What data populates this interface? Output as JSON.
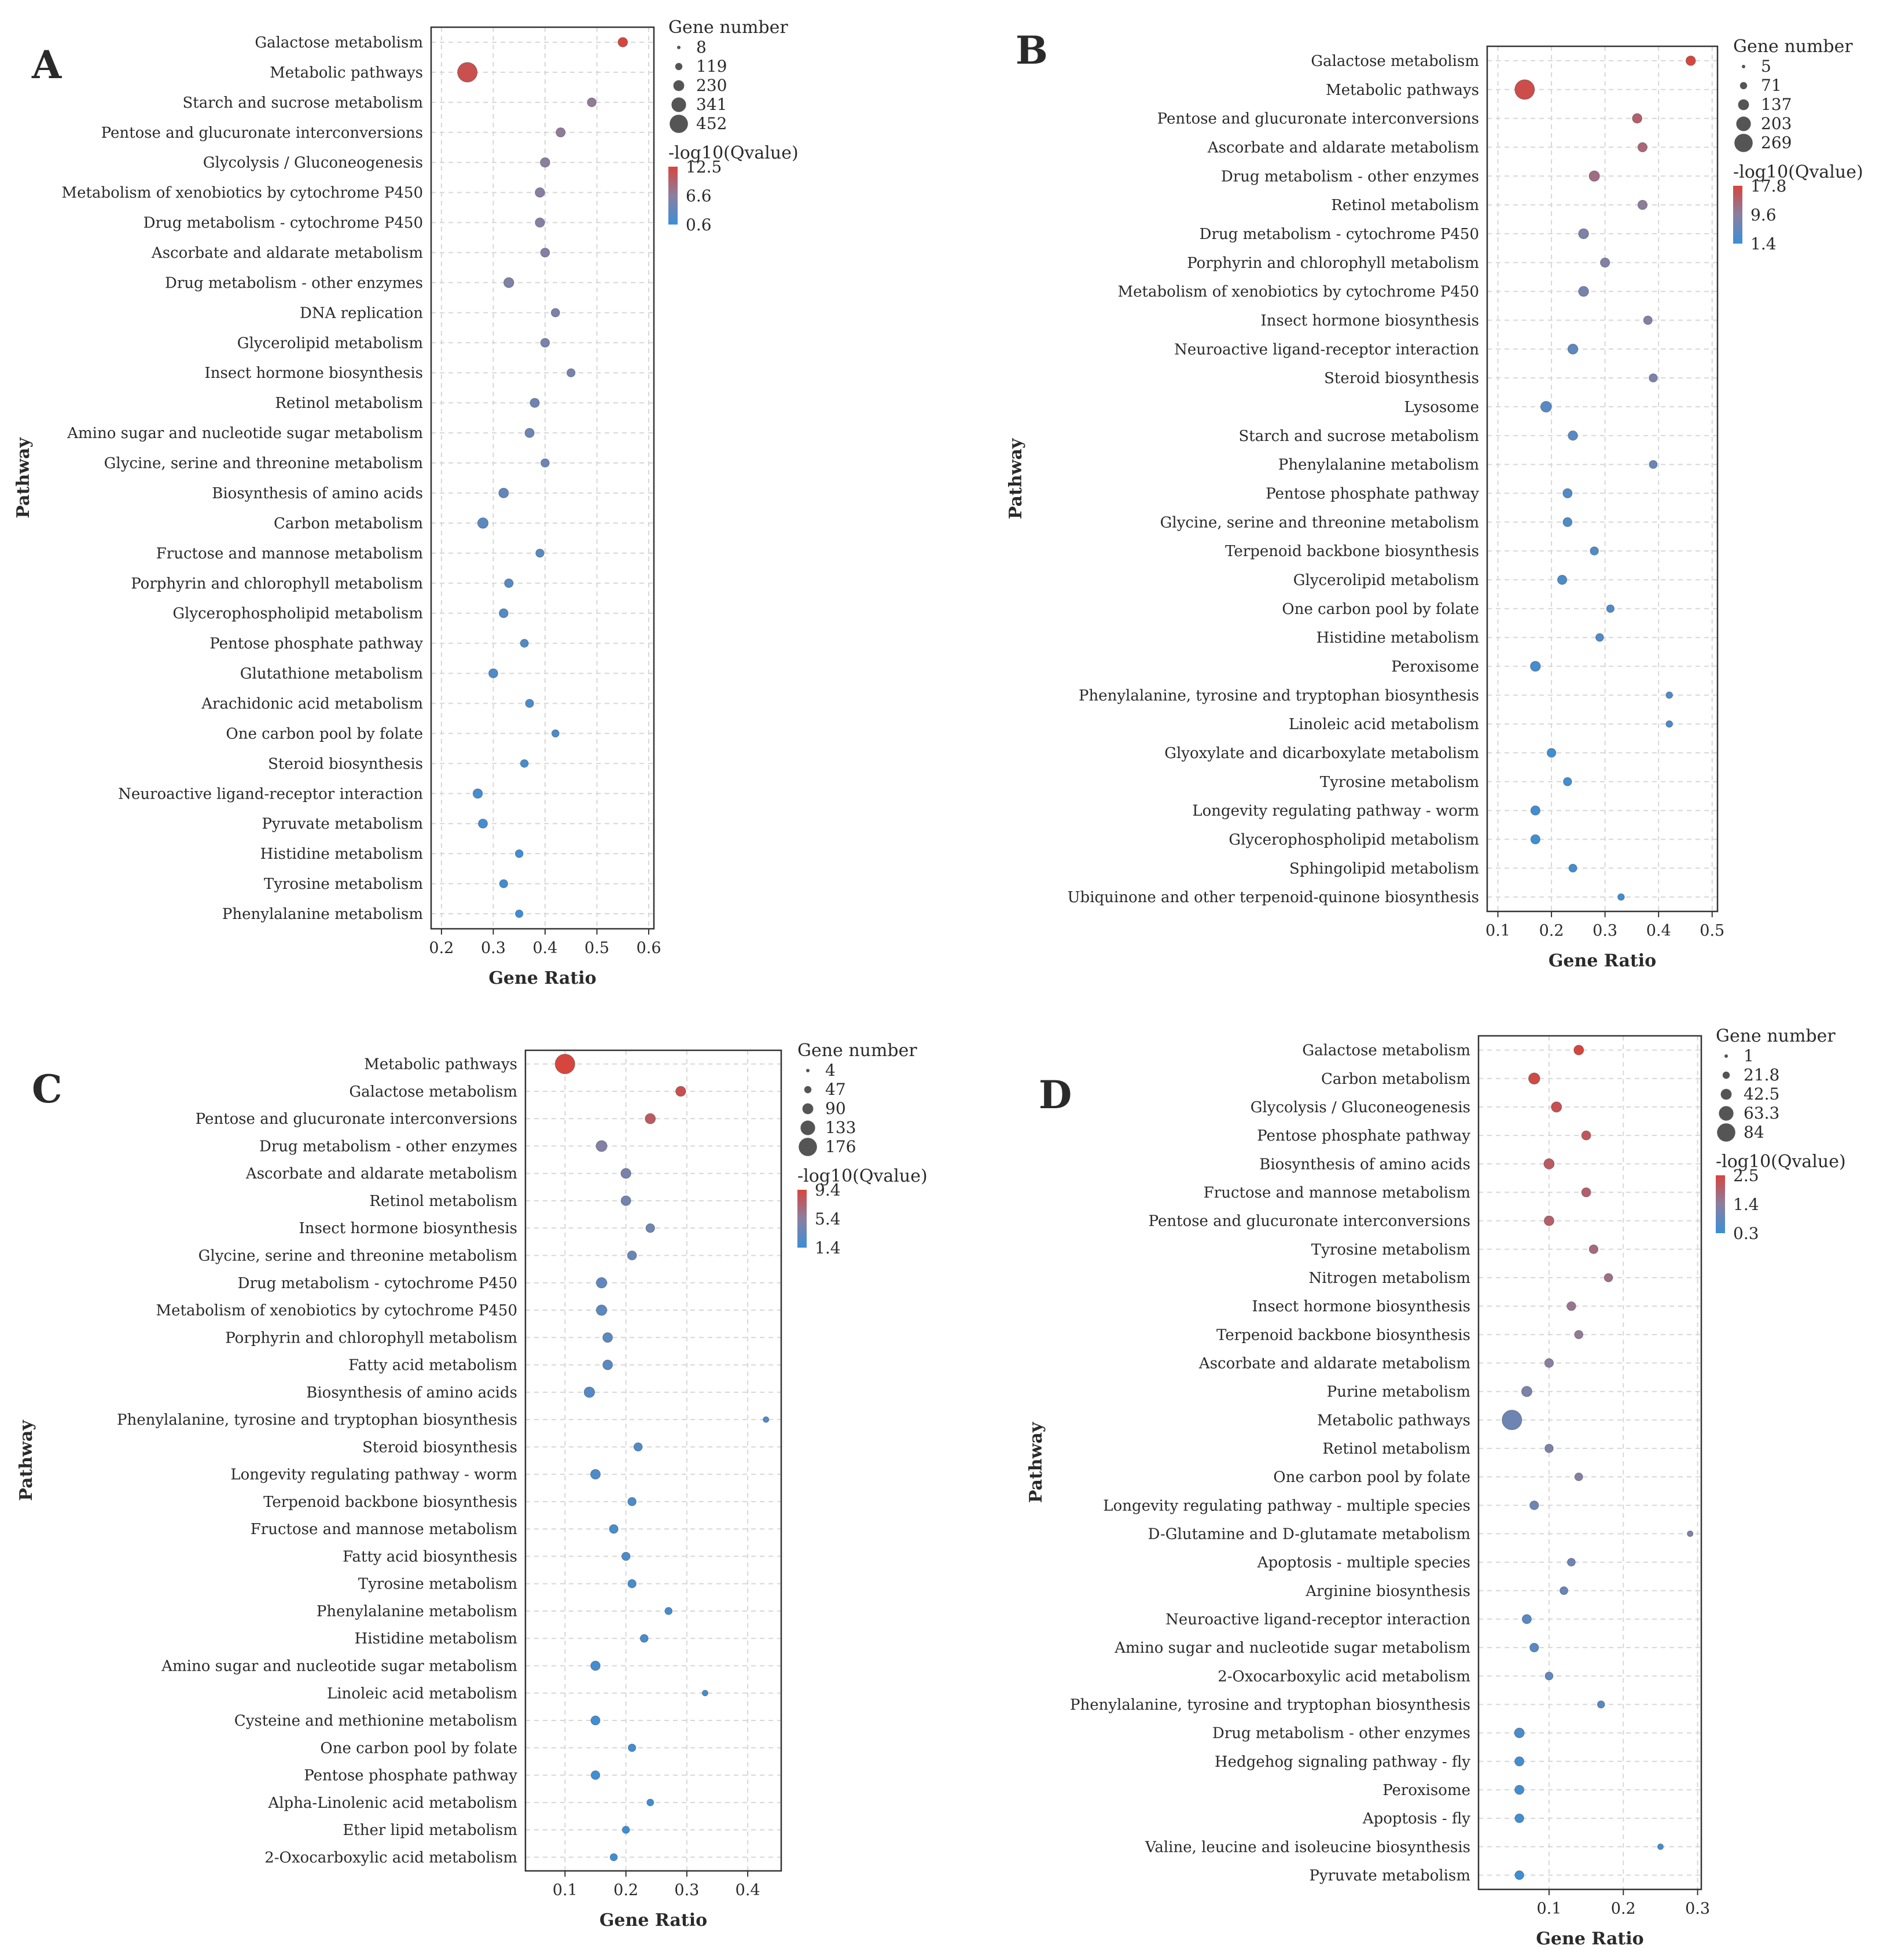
{
  "chart_data": [
    {
      "panel": "A",
      "type": "scatter",
      "title": "",
      "xlabel": "Gene Ratio",
      "ylabel": "Pathway",
      "xlim": [
        0.18,
        0.61
      ],
      "xticks": [
        "0.2",
        "0.3",
        "0.4",
        "0.5",
        "0.6"
      ],
      "xtick_values": [
        0.2,
        0.3,
        0.4,
        0.5,
        0.6
      ],
      "size_legend_title": "Gene number",
      "size_legend": [
        8,
        119,
        230,
        341,
        452
      ],
      "color_legend_title": "-log10(Qvalue)",
      "color_legend": [
        12.5,
        6.6,
        0.6
      ],
      "grid": true,
      "points": [
        {
          "pathway": "Galactose metabolism",
          "ratio": 0.55,
          "genes": 40,
          "q": 12.5
        },
        {
          "pathway": "Metabolic pathways",
          "ratio": 0.25,
          "genes": 452,
          "q": 11.5
        },
        {
          "pathway": "Starch and sucrose metabolism",
          "ratio": 0.49,
          "genes": 30,
          "q": 7.0
        },
        {
          "pathway": "Pentose and glucuronate interconversions",
          "ratio": 0.43,
          "genes": 35,
          "q": 7.0
        },
        {
          "pathway": "Glycolysis / Gluconeogenesis",
          "ratio": 0.4,
          "genes": 40,
          "q": 6.6
        },
        {
          "pathway": "Metabolism of xenobiotics by cytochrome P450",
          "ratio": 0.39,
          "genes": 40,
          "q": 6.4
        },
        {
          "pathway": "Drug metabolism - cytochrome P450",
          "ratio": 0.39,
          "genes": 38,
          "q": 6.2
        },
        {
          "pathway": "Ascorbate and aldarate metabolism",
          "ratio": 0.4,
          "genes": 32,
          "q": 6.0
        },
        {
          "pathway": "Drug metabolism - other enzymes",
          "ratio": 0.33,
          "genes": 50,
          "q": 5.8
        },
        {
          "pathway": "DNA replication",
          "ratio": 0.42,
          "genes": 25,
          "q": 5.5
        },
        {
          "pathway": "Glycerolipid metabolism",
          "ratio": 0.4,
          "genes": 30,
          "q": 5.2
        },
        {
          "pathway": "Insect hormone biosynthesis",
          "ratio": 0.45,
          "genes": 22,
          "q": 5.0
        },
        {
          "pathway": "Retinol metabolism",
          "ratio": 0.38,
          "genes": 35,
          "q": 4.6
        },
        {
          "pathway": "Amino sugar and nucleotide sugar metabolism",
          "ratio": 0.37,
          "genes": 36,
          "q": 4.3
        },
        {
          "pathway": "Glycine, serine and threonine metabolism",
          "ratio": 0.4,
          "genes": 24,
          "q": 4.0
        },
        {
          "pathway": "Biosynthesis of amino acids",
          "ratio": 0.32,
          "genes": 45,
          "q": 3.5
        },
        {
          "pathway": "Carbon metabolism",
          "ratio": 0.28,
          "genes": 60,
          "q": 3.0
        },
        {
          "pathway": "Fructose and mannose metabolism",
          "ratio": 0.39,
          "genes": 22,
          "q": 2.8
        },
        {
          "pathway": "Porphyrin and chlorophyll metabolism",
          "ratio": 0.33,
          "genes": 28,
          "q": 2.6
        },
        {
          "pathway": "Glycerophospholipid metabolism",
          "ratio": 0.32,
          "genes": 32,
          "q": 2.4
        },
        {
          "pathway": "Pentose phosphate pathway",
          "ratio": 0.36,
          "genes": 20,
          "q": 2.2
        },
        {
          "pathway": "Glutathione metabolism",
          "ratio": 0.3,
          "genes": 34,
          "q": 2.0
        },
        {
          "pathway": "Arachidonic acid metabolism",
          "ratio": 0.37,
          "genes": 22,
          "q": 1.8
        },
        {
          "pathway": "One carbon pool by folate",
          "ratio": 0.42,
          "genes": 14,
          "q": 1.6
        },
        {
          "pathway": "Steroid biosynthesis",
          "ratio": 0.36,
          "genes": 18,
          "q": 1.4
        },
        {
          "pathway": "Neuroactive ligand-receptor interaction",
          "ratio": 0.27,
          "genes": 40,
          "q": 1.2
        },
        {
          "pathway": "Pyruvate metabolism",
          "ratio": 0.28,
          "genes": 34,
          "q": 1.0
        },
        {
          "pathway": "Histidine metabolism",
          "ratio": 0.35,
          "genes": 18,
          "q": 0.9
        },
        {
          "pathway": "Tyrosine metabolism",
          "ratio": 0.32,
          "genes": 22,
          "q": 0.8
        },
        {
          "pathway": "Phenylalanine metabolism",
          "ratio": 0.35,
          "genes": 16,
          "q": 0.6
        }
      ]
    },
    {
      "panel": "B",
      "type": "scatter",
      "title": "",
      "xlabel": "Gene Ratio",
      "ylabel": "Pathway",
      "xlim": [
        0.08,
        0.51
      ],
      "xticks": [
        "0.1",
        "0.2",
        "0.3",
        "0.4",
        "0.5"
      ],
      "xtick_values": [
        0.1,
        0.2,
        0.3,
        0.4,
        0.5
      ],
      "size_legend_title": "Gene number",
      "size_legend": [
        5,
        71,
        137,
        203,
        269
      ],
      "color_legend_title": "-log10(Qvalue)",
      "color_legend": [
        17.8,
        9.6,
        1.4
      ],
      "grid": true,
      "points": [
        {
          "pathway": "Galactose metabolism",
          "ratio": 0.46,
          "genes": 25,
          "q": 17.8
        },
        {
          "pathway": "Metabolic pathways",
          "ratio": 0.15,
          "genes": 269,
          "q": 16.8
        },
        {
          "pathway": "Pentose and glucuronate interconversions",
          "ratio": 0.36,
          "genes": 25,
          "q": 14.0
        },
        {
          "pathway": "Ascorbate and aldarate metabolism",
          "ratio": 0.37,
          "genes": 22,
          "q": 13.0
        },
        {
          "pathway": "Drug metabolism - other enzymes",
          "ratio": 0.28,
          "genes": 35,
          "q": 12.0
        },
        {
          "pathway": "Retinol metabolism",
          "ratio": 0.37,
          "genes": 22,
          "q": 10.0
        },
        {
          "pathway": "Drug metabolism - cytochrome P450",
          "ratio": 0.26,
          "genes": 30,
          "q": 8.0
        },
        {
          "pathway": "Porphyrin and chlorophyll metabolism",
          "ratio": 0.3,
          "genes": 22,
          "q": 8.8
        },
        {
          "pathway": "Metabolism of xenobiotics by cytochrome P450",
          "ratio": 0.26,
          "genes": 30,
          "q": 7.5
        },
        {
          "pathway": "Insect hormone biosynthesis",
          "ratio": 0.38,
          "genes": 16,
          "q": 9.0
        },
        {
          "pathway": "Neuroactive ligand-receptor interaction",
          "ratio": 0.24,
          "genes": 30,
          "q": 5.0
        },
        {
          "pathway": "Steroid biosynthesis",
          "ratio": 0.39,
          "genes": 14,
          "q": 8.0
        },
        {
          "pathway": "Lysosome",
          "ratio": 0.19,
          "genes": 40,
          "q": 4.0
        },
        {
          "pathway": "Starch and sucrose metabolism",
          "ratio": 0.24,
          "genes": 24,
          "q": 4.2
        },
        {
          "pathway": "Phenylalanine metabolism",
          "ratio": 0.39,
          "genes": 12,
          "q": 6.0
        },
        {
          "pathway": "Pentose phosphate pathway",
          "ratio": 0.23,
          "genes": 22,
          "q": 3.6
        },
        {
          "pathway": "Glycine, serine and threonine metabolism",
          "ratio": 0.23,
          "genes": 20,
          "q": 3.4
        },
        {
          "pathway": "Terpenoid backbone biosynthesis",
          "ratio": 0.28,
          "genes": 14,
          "q": 3.6
        },
        {
          "pathway": "Glycerolipid metabolism",
          "ratio": 0.22,
          "genes": 22,
          "q": 3.0
        },
        {
          "pathway": "One carbon pool by folate",
          "ratio": 0.31,
          "genes": 10,
          "q": 3.2
        },
        {
          "pathway": "Histidine metabolism",
          "ratio": 0.29,
          "genes": 11,
          "q": 3.6
        },
        {
          "pathway": "Peroxisome",
          "ratio": 0.17,
          "genes": 30,
          "q": 2.2
        },
        {
          "pathway": "Phenylalanine, tyrosine and tryptophan biosynthesis",
          "ratio": 0.42,
          "genes": 6,
          "q": 3.0
        },
        {
          "pathway": "Linoleic acid metabolism",
          "ratio": 0.42,
          "genes": 6,
          "q": 2.8
        },
        {
          "pathway": "Glyoxylate and dicarboxylate metabolism",
          "ratio": 0.2,
          "genes": 18,
          "q": 2.0
        },
        {
          "pathway": "Tyrosine metabolism",
          "ratio": 0.23,
          "genes": 14,
          "q": 2.0
        },
        {
          "pathway": "Longevity regulating pathway - worm",
          "ratio": 0.17,
          "genes": 22,
          "q": 1.8
        },
        {
          "pathway": "Glycerophospholipid metabolism",
          "ratio": 0.17,
          "genes": 22,
          "q": 1.6
        },
        {
          "pathway": "Sphingolipid metabolism",
          "ratio": 0.24,
          "genes": 12,
          "q": 1.6
        },
        {
          "pathway": "Ubiquinone and other terpenoid-quinone biosynthesis",
          "ratio": 0.33,
          "genes": 6,
          "q": 1.4
        }
      ]
    },
    {
      "panel": "C",
      "type": "scatter",
      "title": "",
      "xlabel": "Gene Ratio",
      "ylabel": "Pathway",
      "xlim": [
        0.035,
        0.455
      ],
      "xticks": [
        "0.1",
        "0.2",
        "0.3",
        "0.4"
      ],
      "xtick_values": [
        0.1,
        0.2,
        0.3,
        0.4
      ],
      "size_legend_title": "Gene number",
      "size_legend": [
        4,
        47,
        90,
        133,
        176
      ],
      "color_legend_title": "-log10(Qvalue)",
      "color_legend": [
        9.4,
        5.4,
        1.4
      ],
      "grid": true,
      "points": [
        {
          "pathway": "Metabolic pathways",
          "ratio": 0.1,
          "genes": 176,
          "q": 9.4
        },
        {
          "pathway": "Galactose metabolism",
          "ratio": 0.29,
          "genes": 20,
          "q": 8.8
        },
        {
          "pathway": "Pentose and glucuronate interconversions",
          "ratio": 0.24,
          "genes": 22,
          "q": 8.0
        },
        {
          "pathway": "Drug metabolism - other enzymes",
          "ratio": 0.16,
          "genes": 28,
          "q": 5.0
        },
        {
          "pathway": "Ascorbate and aldarate metabolism",
          "ratio": 0.2,
          "genes": 20,
          "q": 4.6
        },
        {
          "pathway": "Retinol metabolism",
          "ratio": 0.2,
          "genes": 18,
          "q": 4.2
        },
        {
          "pathway": "Insect hormone biosynthesis",
          "ratio": 0.24,
          "genes": 12,
          "q": 4.0
        },
        {
          "pathway": "Glycine, serine and threonine metabolism",
          "ratio": 0.21,
          "genes": 14,
          "q": 3.6
        },
        {
          "pathway": "Drug metabolism - cytochrome P450",
          "ratio": 0.16,
          "genes": 24,
          "q": 3.2
        },
        {
          "pathway": "Metabolism of xenobiotics by cytochrome P450",
          "ratio": 0.16,
          "genes": 24,
          "q": 3.0
        },
        {
          "pathway": "Porphyrin and chlorophyll metabolism",
          "ratio": 0.17,
          "genes": 18,
          "q": 3.0
        },
        {
          "pathway": "Fatty acid metabolism",
          "ratio": 0.17,
          "genes": 18,
          "q": 2.8
        },
        {
          "pathway": "Biosynthesis of amino acids",
          "ratio": 0.14,
          "genes": 24,
          "q": 2.6
        },
        {
          "pathway": "Phenylalanine, tyrosine and tryptophan biosynthesis",
          "ratio": 0.43,
          "genes": 4,
          "q": 2.6
        },
        {
          "pathway": "Steroid biosynthesis",
          "ratio": 0.22,
          "genes": 10,
          "q": 2.4
        },
        {
          "pathway": "Longevity regulating pathway - worm",
          "ratio": 0.15,
          "genes": 18,
          "q": 2.2
        },
        {
          "pathway": "Terpenoid backbone biosynthesis",
          "ratio": 0.21,
          "genes": 10,
          "q": 2.2
        },
        {
          "pathway": "Fructose and mannose metabolism",
          "ratio": 0.18,
          "genes": 12,
          "q": 2.0
        },
        {
          "pathway": "Fatty acid biosynthesis",
          "ratio": 0.2,
          "genes": 10,
          "q": 2.0
        },
        {
          "pathway": "Tyrosine metabolism",
          "ratio": 0.21,
          "genes": 10,
          "q": 1.9
        },
        {
          "pathway": "Phenylalanine metabolism",
          "ratio": 0.27,
          "genes": 6,
          "q": 1.8
        },
        {
          "pathway": "Histidine metabolism",
          "ratio": 0.23,
          "genes": 8,
          "q": 1.8
        },
        {
          "pathway": "Amino sugar and nucleotide sugar metabolism",
          "ratio": 0.15,
          "genes": 16,
          "q": 1.7
        },
        {
          "pathway": "Linoleic acid metabolism",
          "ratio": 0.33,
          "genes": 4,
          "q": 1.7
        },
        {
          "pathway": "Cysteine and methionine metabolism",
          "ratio": 0.15,
          "genes": 14,
          "q": 1.6
        },
        {
          "pathway": "One carbon pool by folate",
          "ratio": 0.21,
          "genes": 7,
          "q": 1.6
        },
        {
          "pathway": "Pentose phosphate pathway",
          "ratio": 0.15,
          "genes": 12,
          "q": 1.5
        },
        {
          "pathway": "Alpha-Linolenic acid metabolism",
          "ratio": 0.24,
          "genes": 5,
          "q": 1.5
        },
        {
          "pathway": "Ether lipid metabolism",
          "ratio": 0.2,
          "genes": 6,
          "q": 1.4
        },
        {
          "pathway": "2-Oxocarboxylic acid metabolism",
          "ratio": 0.18,
          "genes": 6,
          "q": 1.4
        }
      ]
    },
    {
      "panel": "D",
      "type": "scatter",
      "title": "",
      "xlabel": "Gene Ratio",
      "ylabel": "Pathway",
      "xlim": [
        0.005,
        0.305
      ],
      "xticks": [
        "0.1",
        "0.2",
        "0.3"
      ],
      "xtick_values": [
        0.1,
        0.2,
        0.3
      ],
      "size_legend_title": "Gene number",
      "size_legend": [
        1,
        21.8,
        42.5,
        63.3,
        84
      ],
      "color_legend_title": "-log10(Qvalue)",
      "color_legend": [
        2.5,
        1.4,
        0.3
      ],
      "grid": true,
      "points": [
        {
          "pathway": "Galactose metabolism",
          "ratio": 0.14,
          "genes": 8,
          "q": 2.5
        },
        {
          "pathway": "Carbon metabolism",
          "ratio": 0.08,
          "genes": 14,
          "q": 2.4
        },
        {
          "pathway": "Glycolysis / Gluconeogenesis",
          "ratio": 0.11,
          "genes": 10,
          "q": 2.3
        },
        {
          "pathway": "Pentose phosphate pathway",
          "ratio": 0.15,
          "genes": 6,
          "q": 2.2
        },
        {
          "pathway": "Biosynthesis of amino acids",
          "ratio": 0.1,
          "genes": 10,
          "q": 2.1
        },
        {
          "pathway": "Fructose and mannose metabolism",
          "ratio": 0.15,
          "genes": 6,
          "q": 2.0
        },
        {
          "pathway": "Pentose and glucuronate interconversions",
          "ratio": 0.1,
          "genes": 8,
          "q": 2.0
        },
        {
          "pathway": "Tyrosine metabolism",
          "ratio": 0.16,
          "genes": 5,
          "q": 1.8
        },
        {
          "pathway": "Nitrogen metabolism",
          "ratio": 0.18,
          "genes": 4,
          "q": 1.7
        },
        {
          "pathway": "Insect hormone biosynthesis",
          "ratio": 0.13,
          "genes": 5,
          "q": 1.6
        },
        {
          "pathway": "Terpenoid backbone biosynthesis",
          "ratio": 0.14,
          "genes": 4,
          "q": 1.5
        },
        {
          "pathway": "Ascorbate and aldarate metabolism",
          "ratio": 0.1,
          "genes": 5,
          "q": 1.4
        },
        {
          "pathway": "Purine metabolism",
          "ratio": 0.07,
          "genes": 10,
          "q": 1.2
        },
        {
          "pathway": "Metabolic pathways",
          "ratio": 0.05,
          "genes": 84,
          "q": 1.0
        },
        {
          "pathway": "Retinol metabolism",
          "ratio": 0.1,
          "genes": 4,
          "q": 1.2
        },
        {
          "pathway": "One carbon pool by folate",
          "ratio": 0.14,
          "genes": 3,
          "q": 1.3
        },
        {
          "pathway": "Longevity regulating pathway - multiple species",
          "ratio": 0.08,
          "genes": 5,
          "q": 1.0
        },
        {
          "pathway": "D-Glutamine and D-glutamate metabolism",
          "ratio": 0.29,
          "genes": 1,
          "q": 1.2
        },
        {
          "pathway": "Apoptosis - multiple species",
          "ratio": 0.13,
          "genes": 3,
          "q": 1.0
        },
        {
          "pathway": "Arginine biosynthesis",
          "ratio": 0.12,
          "genes": 3,
          "q": 0.9
        },
        {
          "pathway": "Neuroactive ligand-receptor interaction",
          "ratio": 0.07,
          "genes": 6,
          "q": 0.7
        },
        {
          "pathway": "Amino sugar and nucleotide sugar metabolism",
          "ratio": 0.08,
          "genes": 5,
          "q": 0.7
        },
        {
          "pathway": "2-Oxocarboxylic acid metabolism",
          "ratio": 0.1,
          "genes": 3,
          "q": 0.8
        },
        {
          "pathway": "Phenylalanine, tyrosine and tryptophan biosynthesis",
          "ratio": 0.17,
          "genes": 2,
          "q": 0.7
        },
        {
          "pathway": "Drug metabolism - other enzymes",
          "ratio": 0.06,
          "genes": 8,
          "q": 0.5
        },
        {
          "pathway": "Hedgehog signaling pathway - fly",
          "ratio": 0.06,
          "genes": 6,
          "q": 0.4
        },
        {
          "pathway": "Peroxisome",
          "ratio": 0.06,
          "genes": 6,
          "q": 0.4
        },
        {
          "pathway": "Apoptosis - fly",
          "ratio": 0.06,
          "genes": 5,
          "q": 0.35
        },
        {
          "pathway": "Valine, leucine and isoleucine biosynthesis",
          "ratio": 0.25,
          "genes": 1,
          "q": 0.4
        },
        {
          "pathway": "Pyruvate metabolism",
          "ratio": 0.06,
          "genes": 5,
          "q": 0.3
        }
      ]
    }
  ],
  "colors": {
    "high": "#d6463f",
    "mid": "#8a7fa0",
    "low": "#3c8fd6",
    "legend_dot": "#555555",
    "grid": "#d7d7d7",
    "frame": "#333333"
  }
}
